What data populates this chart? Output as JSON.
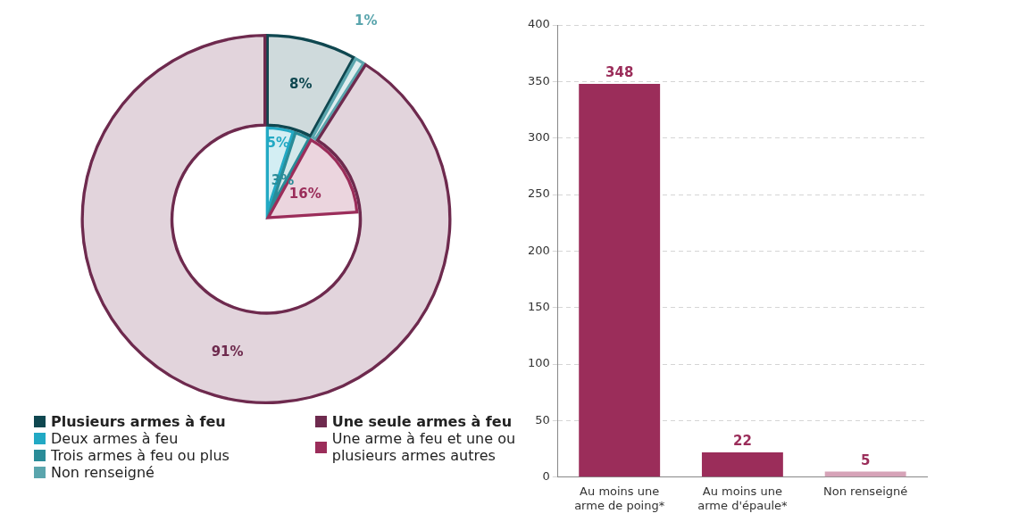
{
  "chart_data": [
    {
      "type": "donut",
      "categories": [
        "Plusieurs armes à feu",
        "Deux armes à feu",
        "Trois armes à feu ou plus",
        "Non renseigné",
        "Une seule armes à feu",
        "Une arme à feu et une ou plusieurs armes autres"
      ],
      "series": [
        {
          "values": [
            8,
            null,
            null,
            1,
            91,
            null
          ],
          "colors": [
            "#0f4750",
            "#22a9c4",
            "#2a8c98",
            "#5aa5ad",
            "#6e2a4e",
            "#9b2d5a"
          ],
          "value_labels": [
            "8%",
            null,
            null,
            "1%",
            "91%",
            null
          ]
        },
        {
          "values": [
            null,
            5,
            3,
            null,
            null,
            16
          ],
          "colors": [
            "#0f4750",
            "#22a9c4",
            "#2a8c98",
            "#5aa5ad",
            "#6e2a4e",
            "#9b2d5a"
          ],
          "value_labels": [
            null,
            "5%",
            "3%",
            null,
            null,
            "16%"
          ]
        }
      ],
      "legend": "bottom"
    },
    {
      "type": "bar",
      "categories": [
        "Au moins une arme de poing*",
        "Au moins une arme d'épaule*",
        "Non renseigné"
      ],
      "values": [
        348,
        22,
        5
      ],
      "colors": [
        "#9b2d5a",
        "#9b2d5a",
        "#d6a3b8"
      ],
      "data_labels": true,
      "ylim": [
        0,
        400
      ],
      "yticks": [
        0,
        50,
        100,
        150,
        200,
        250,
        300,
        350,
        400
      ],
      "grid": "y"
    }
  ]
}
